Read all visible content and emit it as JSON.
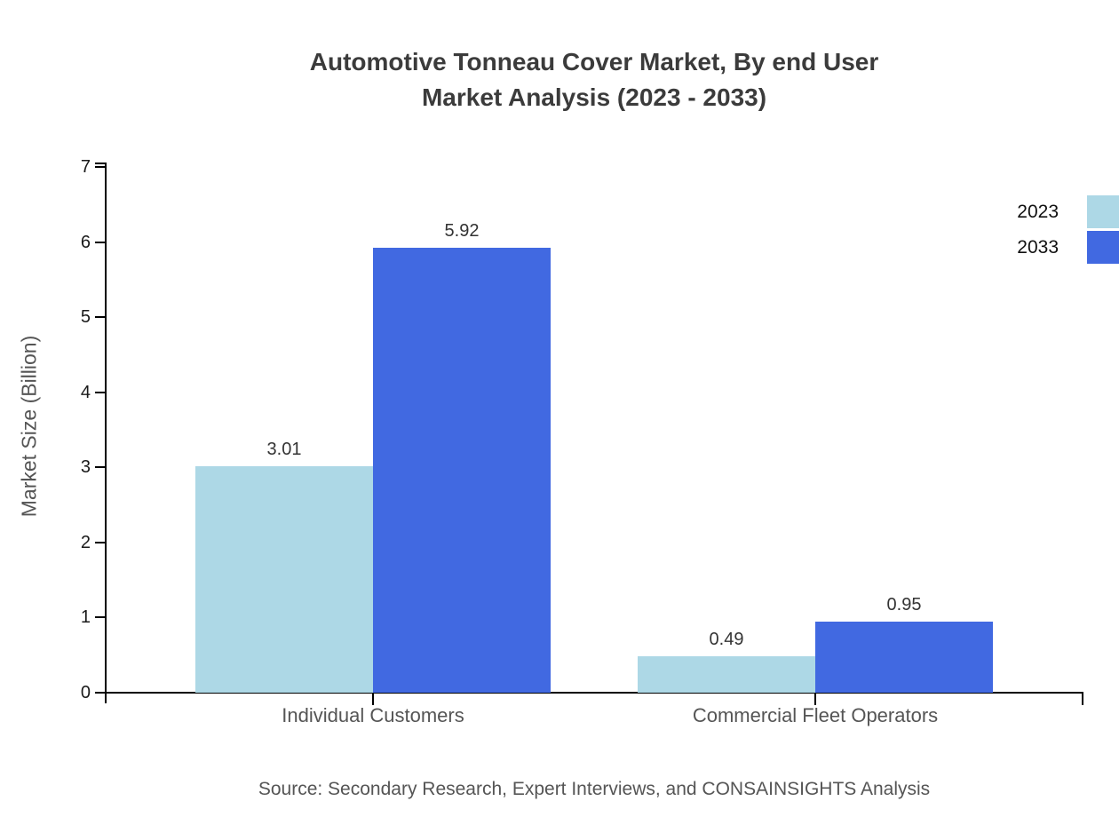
{
  "title": {
    "line1": "Automotive Tonneau Cover Market, By end User",
    "line2": "Market Analysis (2023 - 2033)"
  },
  "source_note": "Source: Secondary Research, Expert Interviews, and CONSAINSIGHTS Analysis",
  "chart_data": {
    "type": "bar",
    "title": "Automotive Tonneau Cover Market, By end User Market Analysis (2023 - 2033)",
    "categories": [
      "Individual Customers",
      "Commercial Fleet Operators"
    ],
    "series": [
      {
        "name": "2023",
        "values": [
          3.01,
          0.49
        ],
        "color": "#ADD8E6"
      },
      {
        "name": "2033",
        "values": [
          5.92,
          0.95
        ],
        "color": "#4169E1"
      }
    ],
    "value_labels": [
      "3.01",
      "5.92",
      "0.49",
      "0.95"
    ],
    "xlabel": "",
    "ylabel": "Market Size (Billion)",
    "ylim": [
      0,
      7
    ],
    "yticks": [
      0,
      1,
      2,
      3,
      4,
      5,
      6,
      7
    ],
    "grid": false,
    "legend_position": "top-right",
    "legend_entries": [
      "2023",
      "2033"
    ]
  },
  "colors": {
    "series_2023": "#ADD8E6",
    "series_2033": "#4169E1",
    "axis": "#000000",
    "title_text": "#3b3b3b",
    "tick_text": "#1a1a1a",
    "value_text": "#333333",
    "category_text": "#555555",
    "muted_text": "#555555"
  }
}
